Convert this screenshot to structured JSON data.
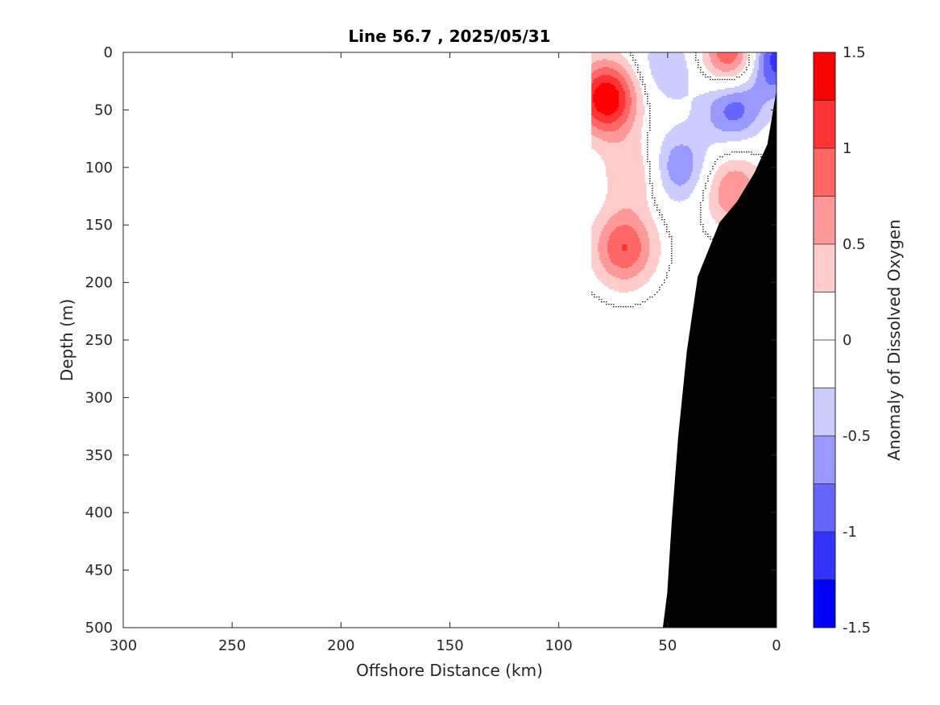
{
  "chart_data": {
    "type": "heatmap",
    "subtype": "filled contour section",
    "title": "Line 56.7 , 2025/05/31",
    "xlabel": "Offshore Distance (km)",
    "ylabel": "Depth (m)",
    "xlim": [
      300,
      0
    ],
    "x_reversed": true,
    "ylim": [
      0,
      500
    ],
    "y_reversed": true,
    "xticks": [
      300,
      250,
      200,
      150,
      100,
      50,
      0
    ],
    "yticks": [
      0,
      50,
      100,
      150,
      200,
      250,
      300,
      350,
      400,
      450,
      500
    ],
    "grid": false,
    "data_coverage_km": [
      0,
      85
    ],
    "colorbar": {
      "label": "Anomaly of Dissolved Oxygen",
      "range": [
        -1.5,
        1.5
      ],
      "ticks": [
        1.5,
        1,
        0.5,
        0,
        -0.5,
        -1,
        -1.5
      ],
      "levels": [
        -1.5,
        -1.25,
        -1.0,
        -0.75,
        -0.5,
        -0.25,
        0,
        0.25,
        0.5,
        0.75,
        1.0,
        1.25,
        1.5
      ],
      "colors": [
        "#0000ff",
        "#3333ff",
        "#6666ff",
        "#9999ff",
        "#ccccff",
        "#ffffff",
        "#ffffff",
        "#ffcccc",
        "#ff9999",
        "#ff6666",
        "#ff3333",
        "#ff0000"
      ]
    },
    "bathymetry": {
      "color": "#000000",
      "points": [
        [
          0,
          35
        ],
        [
          4,
          80
        ],
        [
          10,
          105
        ],
        [
          18,
          130
        ],
        [
          26,
          148
        ],
        [
          36,
          195
        ],
        [
          41,
          260
        ],
        [
          45,
          335
        ],
        [
          48,
          410
        ],
        [
          50,
          470
        ],
        [
          52,
          500
        ],
        [
          0,
          500
        ]
      ]
    },
    "anomaly_features": [
      {
        "sign": "positive",
        "x_km": 78,
        "depth_m": 40,
        "peak": 1.5,
        "label": "upper offshore high"
      },
      {
        "sign": "positive",
        "x_km": 20,
        "depth_m": 5,
        "peak": 1.25,
        "label": "surface nearshore high"
      },
      {
        "sign": "positive",
        "x_km": 70,
        "depth_m": 170,
        "peak": 1.0,
        "label": "subsurface offshore high"
      },
      {
        "sign": "positive",
        "x_km": 20,
        "depth_m": 120,
        "peak": 0.75,
        "label": "mid nearshore high"
      },
      {
        "sign": "positive",
        "x_km": 65,
        "depth_m": 105,
        "peak": 0.5,
        "label": "small high"
      },
      {
        "sign": "negative",
        "x_km": 20,
        "depth_m": 45,
        "peak": -1.0,
        "label": "upper nearshore low"
      },
      {
        "sign": "negative",
        "x_km": 45,
        "depth_m": 100,
        "peak": -0.75,
        "label": "mid-shelf low"
      },
      {
        "sign": "negative",
        "x_km": 50,
        "depth_m": 12,
        "peak": -0.5,
        "label": "small surface low"
      },
      {
        "sign": "negative",
        "x_km": 1,
        "depth_m": 5,
        "peak": -1.25,
        "label": "coastal surface low"
      }
    ]
  }
}
